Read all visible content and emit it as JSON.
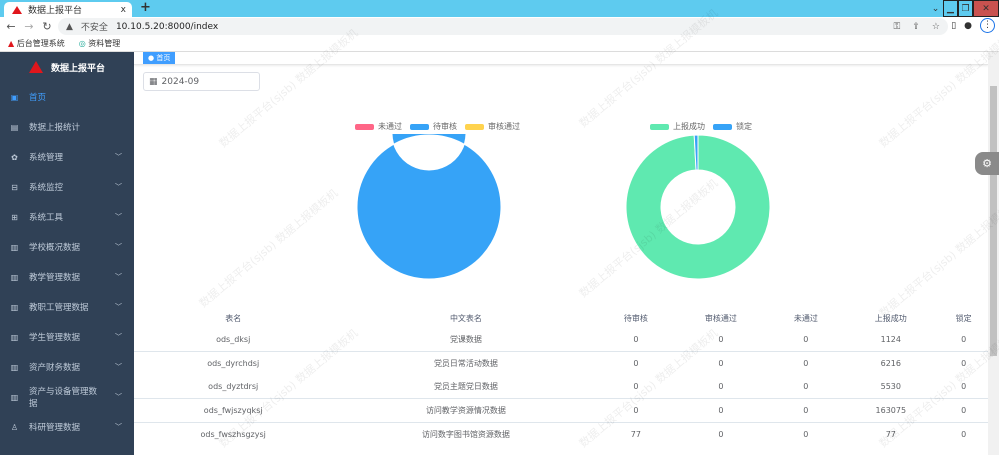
{
  "browser": {
    "tab_title": "数据上报平台",
    "close": "x",
    "new_tab": "+",
    "security": "不安全",
    "url": "10.10.5.20:8000/index",
    "bookmarks": [
      "后台管理系统",
      "资料管理"
    ]
  },
  "app": {
    "title": "数据上报平台",
    "watermark": "数据上报平台(sjsb) 数据上报模板机"
  },
  "sidebar": {
    "items": [
      {
        "label": "首页",
        "icon": "dashboard-icon",
        "active": true,
        "expandable": false
      },
      {
        "label": "数据上报统计",
        "icon": "table-icon",
        "expandable": false
      },
      {
        "label": "系统管理",
        "icon": "gear-icon",
        "expandable": true
      },
      {
        "label": "系统监控",
        "icon": "monitor-icon",
        "expandable": true
      },
      {
        "label": "系统工具",
        "icon": "tool-icon",
        "expandable": true
      },
      {
        "label": "学校概况数据",
        "icon": "chart-icon",
        "expandable": true
      },
      {
        "label": "教学管理数据",
        "icon": "chart-icon",
        "expandable": true
      },
      {
        "label": "教职工管理数据",
        "icon": "chart-icon",
        "expandable": true
      },
      {
        "label": "学生管理数据",
        "icon": "chart-icon",
        "expandable": true
      },
      {
        "label": "资产财务数据",
        "icon": "chart-icon",
        "expandable": true
      },
      {
        "label": "资产与设备管理数据",
        "icon": "chart-icon",
        "expandable": true
      },
      {
        "label": "科研管理数据",
        "icon": "flask-icon",
        "expandable": true
      }
    ]
  },
  "tags": {
    "active": "首页"
  },
  "filter": {
    "month": "2024-09"
  },
  "chart_data": [
    {
      "type": "pie",
      "donut": true,
      "legend_placement": "top",
      "series": [
        {
          "name": "未通过",
          "value": 0,
          "color": "#ff6687"
        },
        {
          "name": "待审核",
          "value": 77,
          "color": "#36a3f7"
        },
        {
          "name": "审核通过",
          "value": 0,
          "color": "#ffd34e"
        }
      ]
    },
    {
      "type": "pie",
      "donut": true,
      "legend_placement": "top",
      "series": [
        {
          "name": "上报成功",
          "value": 176982,
          "color": "#5fe9b0"
        },
        {
          "name": "锁定",
          "value": 1500,
          "color": "#36a3f7"
        }
      ]
    }
  ],
  "table": {
    "headers": [
      "表名",
      "中文表名",
      "待审核",
      "审核通过",
      "未通过",
      "上报成功",
      "锁定"
    ],
    "rows": [
      [
        "ods_dksj",
        "党课数据",
        "0",
        "0",
        "0",
        "1124",
        "0"
      ],
      [
        "ods_dyrchdsj",
        "党员日常活动数据",
        "0",
        "0",
        "0",
        "6216",
        "0"
      ],
      [
        "ods_dyztdrsj",
        "党员主题党日数据",
        "0",
        "0",
        "0",
        "5530",
        "0"
      ],
      [
        "ods_fwjszyqksj",
        "访问教学资源情况数据",
        "0",
        "0",
        "0",
        "163075",
        "0"
      ],
      [
        "ods_fwszhsgzysj",
        "访问数字图书馆资源数据",
        "77",
        "0",
        "0",
        "77",
        "0"
      ]
    ]
  }
}
